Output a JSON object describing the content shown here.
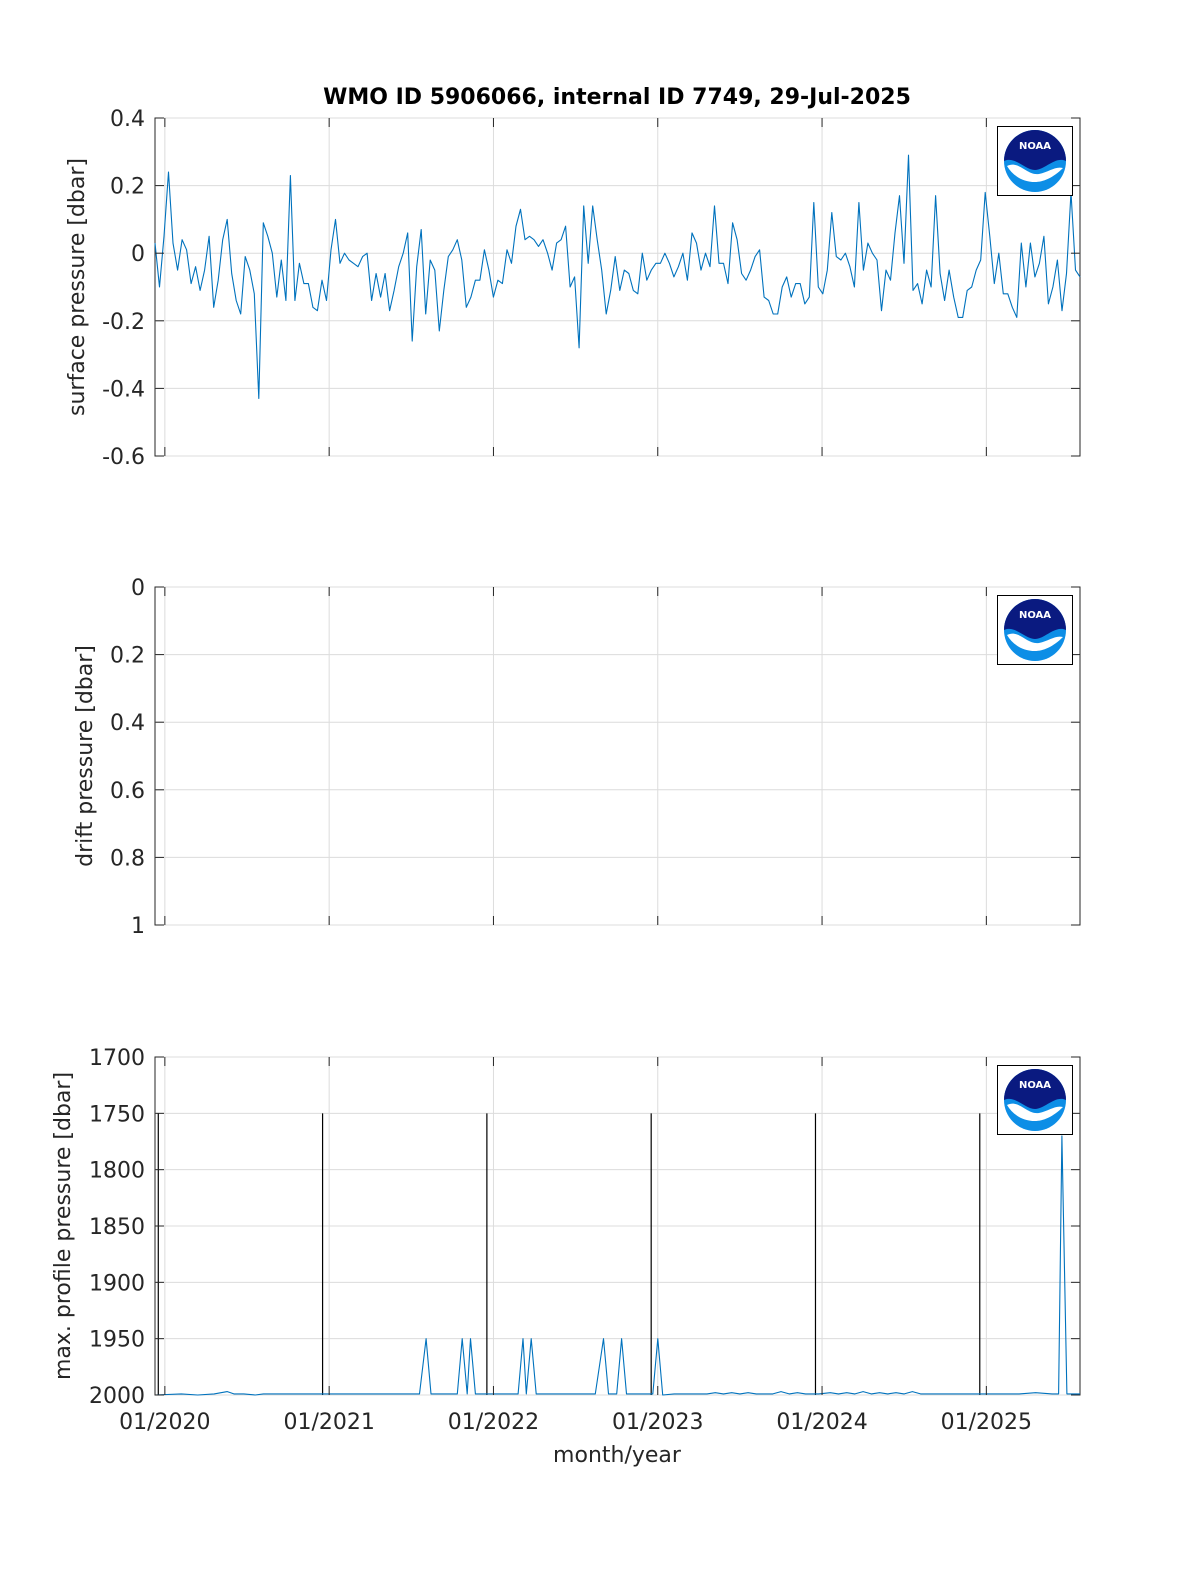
{
  "figure": {
    "title": "WMO ID 5906066, internal ID 7749, 29-Jul-2025",
    "xlabel": "month/year",
    "logo_text": "NOAA"
  },
  "colors": {
    "series": "#0072bd",
    "logo_dark": "#0a1a80",
    "logo_light": "#0d8ee6",
    "grid": "#dcdcdc"
  },
  "chart_data": [
    {
      "type": "line",
      "ylabel": "surface pressure [dbar]",
      "x_tick_labels": [
        "01/2020",
        "01/2021",
        "01/2022",
        "01/2023",
        "01/2024",
        "01/2025"
      ],
      "x_ticks": [
        2020.0,
        2021.0,
        2022.0,
        2023.0,
        2024.0,
        2025.0
      ],
      "xlim": [
        2019.94,
        2025.57
      ],
      "ylim": [
        -0.6,
        0.4
      ],
      "y_reversed": false,
      "y_ticks": [
        0.4,
        0.2,
        0,
        -0.2,
        -0.4,
        -0.6
      ],
      "y_tick_labels": [
        "0.4",
        "0.2",
        "0",
        "-0.2",
        "-0.4",
        "-0.6"
      ],
      "grid": true,
      "series": [
        {
          "x_start": 2019.94,
          "x_end": 2025.57,
          "values": [
            0.03,
            -0.1,
            0.05,
            0.24,
            0.03,
            -0.05,
            0.04,
            0.01,
            -0.09,
            -0.04,
            -0.11,
            -0.05,
            0.05,
            -0.16,
            -0.08,
            0.04,
            0.1,
            -0.06,
            -0.14,
            -0.18,
            -0.01,
            -0.05,
            -0.12,
            -0.43,
            0.09,
            0.05,
            0.0,
            -0.13,
            -0.02,
            -0.14,
            0.23,
            -0.14,
            -0.03,
            -0.09,
            -0.09,
            -0.16,
            -0.17,
            -0.08,
            -0.14,
            0.01,
            0.1,
            -0.03,
            0.0,
            -0.02,
            -0.03,
            -0.04,
            -0.01,
            0.0,
            -0.14,
            -0.06,
            -0.13,
            -0.06,
            -0.17,
            -0.11,
            -0.04,
            0.0,
            0.06,
            -0.26,
            -0.04,
            0.07,
            -0.18,
            -0.02,
            -0.05,
            -0.23,
            -0.11,
            -0.01,
            0.01,
            0.04,
            -0.02,
            -0.16,
            -0.13,
            -0.08,
            -0.08,
            0.01,
            -0.05,
            -0.13,
            -0.08,
            -0.09,
            0.01,
            -0.03,
            0.08,
            0.13,
            0.04,
            0.05,
            0.04,
            0.02,
            0.04,
            0.0,
            -0.05,
            0.03,
            0.04,
            0.08,
            -0.1,
            -0.07,
            -0.28,
            0.14,
            -0.03,
            0.14,
            0.04,
            -0.05,
            -0.18,
            -0.11,
            -0.01,
            -0.11,
            -0.05,
            -0.06,
            -0.11,
            -0.12,
            0.0,
            -0.08,
            -0.05,
            -0.03,
            -0.03,
            0.0,
            -0.03,
            -0.07,
            -0.04,
            0.0,
            -0.08,
            0.06,
            0.03,
            -0.05,
            0.0,
            -0.04,
            0.14,
            -0.03,
            -0.03,
            -0.09,
            0.09,
            0.04,
            -0.06,
            -0.08,
            -0.05,
            -0.01,
            0.01,
            -0.13,
            -0.14,
            -0.18,
            -0.18,
            -0.1,
            -0.07,
            -0.13,
            -0.09,
            -0.09,
            -0.15,
            -0.13,
            0.15,
            -0.1,
            -0.12,
            -0.05,
            0.12,
            -0.01,
            -0.02,
            0.0,
            -0.04,
            -0.1,
            0.15,
            -0.05,
            0.03,
            0.0,
            -0.02,
            -0.17,
            -0.05,
            -0.08,
            0.06,
            0.17,
            -0.03,
            0.29,
            -0.11,
            -0.09,
            -0.15,
            -0.05,
            -0.1,
            0.17,
            -0.06,
            -0.14,
            -0.05,
            -0.13,
            -0.19,
            -0.19,
            -0.11,
            -0.1,
            -0.05,
            -0.02,
            0.18,
            0.05,
            -0.09,
            0.0,
            -0.12,
            -0.12,
            -0.16,
            -0.19,
            0.03,
            -0.1,
            0.03,
            -0.07,
            -0.03,
            0.05,
            -0.15,
            -0.1,
            -0.02,
            -0.17,
            -0.06,
            0.18,
            -0.05,
            -0.07
          ]
        }
      ],
      "vlines": []
    },
    {
      "type": "line",
      "ylabel": "drift pressure [dbar]",
      "x_tick_labels": [
        "01/2020",
        "01/2021",
        "01/2022",
        "01/2023",
        "01/2024",
        "01/2025"
      ],
      "x_ticks": [
        2020.0,
        2021.0,
        2022.0,
        2023.0,
        2024.0,
        2025.0
      ],
      "xlim": [
        2019.94,
        2025.57
      ],
      "ylim": [
        0,
        1
      ],
      "y_reversed": true,
      "y_ticks": [
        0,
        0.2,
        0.4,
        0.6,
        0.8,
        1
      ],
      "y_tick_labels": [
        "0",
        "0.2",
        "0.4",
        "0.6",
        "0.8",
        "1"
      ],
      "grid": true,
      "series": [],
      "vlines": []
    },
    {
      "type": "line",
      "ylabel": "max. profile pressure [dbar]",
      "x_tick_labels": [
        "01/2020",
        "01/2021",
        "01/2022",
        "01/2023",
        "01/2024",
        "01/2025"
      ],
      "x_ticks": [
        2020.0,
        2021.0,
        2022.0,
        2023.0,
        2024.0,
        2025.0
      ],
      "xlim": [
        2019.94,
        2025.57
      ],
      "ylim": [
        1700,
        2000
      ],
      "y_reversed": true,
      "y_ticks": [
        1700,
        1750,
        1800,
        1850,
        1900,
        1950,
        2000
      ],
      "y_tick_labels": [
        "1700",
        "1750",
        "1800",
        "1850",
        "1900",
        "1950",
        "2000"
      ],
      "grid": true,
      "series": [
        {
          "points": [
            [
              2019.94,
              2000
            ],
            [
              2020.1,
              1999
            ],
            [
              2020.2,
              2000
            ],
            [
              2020.3,
              1999
            ],
            [
              2020.38,
              1997
            ],
            [
              2020.42,
              1999
            ],
            [
              2020.48,
              1999
            ],
            [
              2020.55,
              2000
            ],
            [
              2020.6,
              1999
            ],
            [
              2020.7,
              1999
            ],
            [
              2020.8,
              1999
            ],
            [
              2020.9,
              1999
            ],
            [
              2021.0,
              1999
            ],
            [
              2021.1,
              1999
            ],
            [
              2021.2,
              1999
            ],
            [
              2021.3,
              1999
            ],
            [
              2021.4,
              1999
            ],
            [
              2021.5,
              1999
            ],
            [
              2021.55,
              1999
            ],
            [
              2021.59,
              1950
            ],
            [
              2021.62,
              1999
            ],
            [
              2021.7,
              1999
            ],
            [
              2021.78,
              1999
            ],
            [
              2021.81,
              1950
            ],
            [
              2021.84,
              1999
            ],
            [
              2021.86,
              1950
            ],
            [
              2021.89,
              1999
            ],
            [
              2021.95,
              1999
            ],
            [
              2022.05,
              1999
            ],
            [
              2022.12,
              1999
            ],
            [
              2022.15,
              1999
            ],
            [
              2022.18,
              1950
            ],
            [
              2022.2,
              1999
            ],
            [
              2022.23,
              1950
            ],
            [
              2022.26,
              1999
            ],
            [
              2022.35,
              1999
            ],
            [
              2022.45,
              1999
            ],
            [
              2022.55,
              1999
            ],
            [
              2022.62,
              1999
            ],
            [
              2022.67,
              1950
            ],
            [
              2022.7,
              1999
            ],
            [
              2022.75,
              1999
            ],
            [
              2022.78,
              1950
            ],
            [
              2022.81,
              1999
            ],
            [
              2022.9,
              1999
            ],
            [
              2022.97,
              1999
            ],
            [
              2023.0,
              1950
            ],
            [
              2023.03,
              2000
            ],
            [
              2023.1,
              1999
            ],
            [
              2023.2,
              1999
            ],
            [
              2023.3,
              1999
            ],
            [
              2023.35,
              1998
            ],
            [
              2023.4,
              1999
            ],
            [
              2023.45,
              1998
            ],
            [
              2023.5,
              1999
            ],
            [
              2023.55,
              1998
            ],
            [
              2023.6,
              1999
            ],
            [
              2023.7,
              1999
            ],
            [
              2023.75,
              1997
            ],
            [
              2023.8,
              1999
            ],
            [
              2023.85,
              1998
            ],
            [
              2023.9,
              1999
            ],
            [
              2023.98,
              1999
            ],
            [
              2024.05,
              1998
            ],
            [
              2024.1,
              1999
            ],
            [
              2024.15,
              1998
            ],
            [
              2024.2,
              1999
            ],
            [
              2024.25,
              1997
            ],
            [
              2024.3,
              1999
            ],
            [
              2024.35,
              1998
            ],
            [
              2024.4,
              1999
            ],
            [
              2024.45,
              1998
            ],
            [
              2024.5,
              1999
            ],
            [
              2024.55,
              1997
            ],
            [
              2024.6,
              1999
            ],
            [
              2024.7,
              1999
            ],
            [
              2024.8,
              1999
            ],
            [
              2024.9,
              1999
            ],
            [
              2025.0,
              1999
            ],
            [
              2025.1,
              1999
            ],
            [
              2025.2,
              1999
            ],
            [
              2025.3,
              1998
            ],
            [
              2025.4,
              1999
            ],
            [
              2025.44,
              1999
            ],
            [
              2025.46,
              1770
            ],
            [
              2025.49,
              1999
            ],
            [
              2025.57,
              1999
            ]
          ]
        }
      ],
      "vlines": [
        2019.96,
        2020.96,
        2021.96,
        2022.96,
        2023.96,
        2024.96
      ]
    }
  ]
}
